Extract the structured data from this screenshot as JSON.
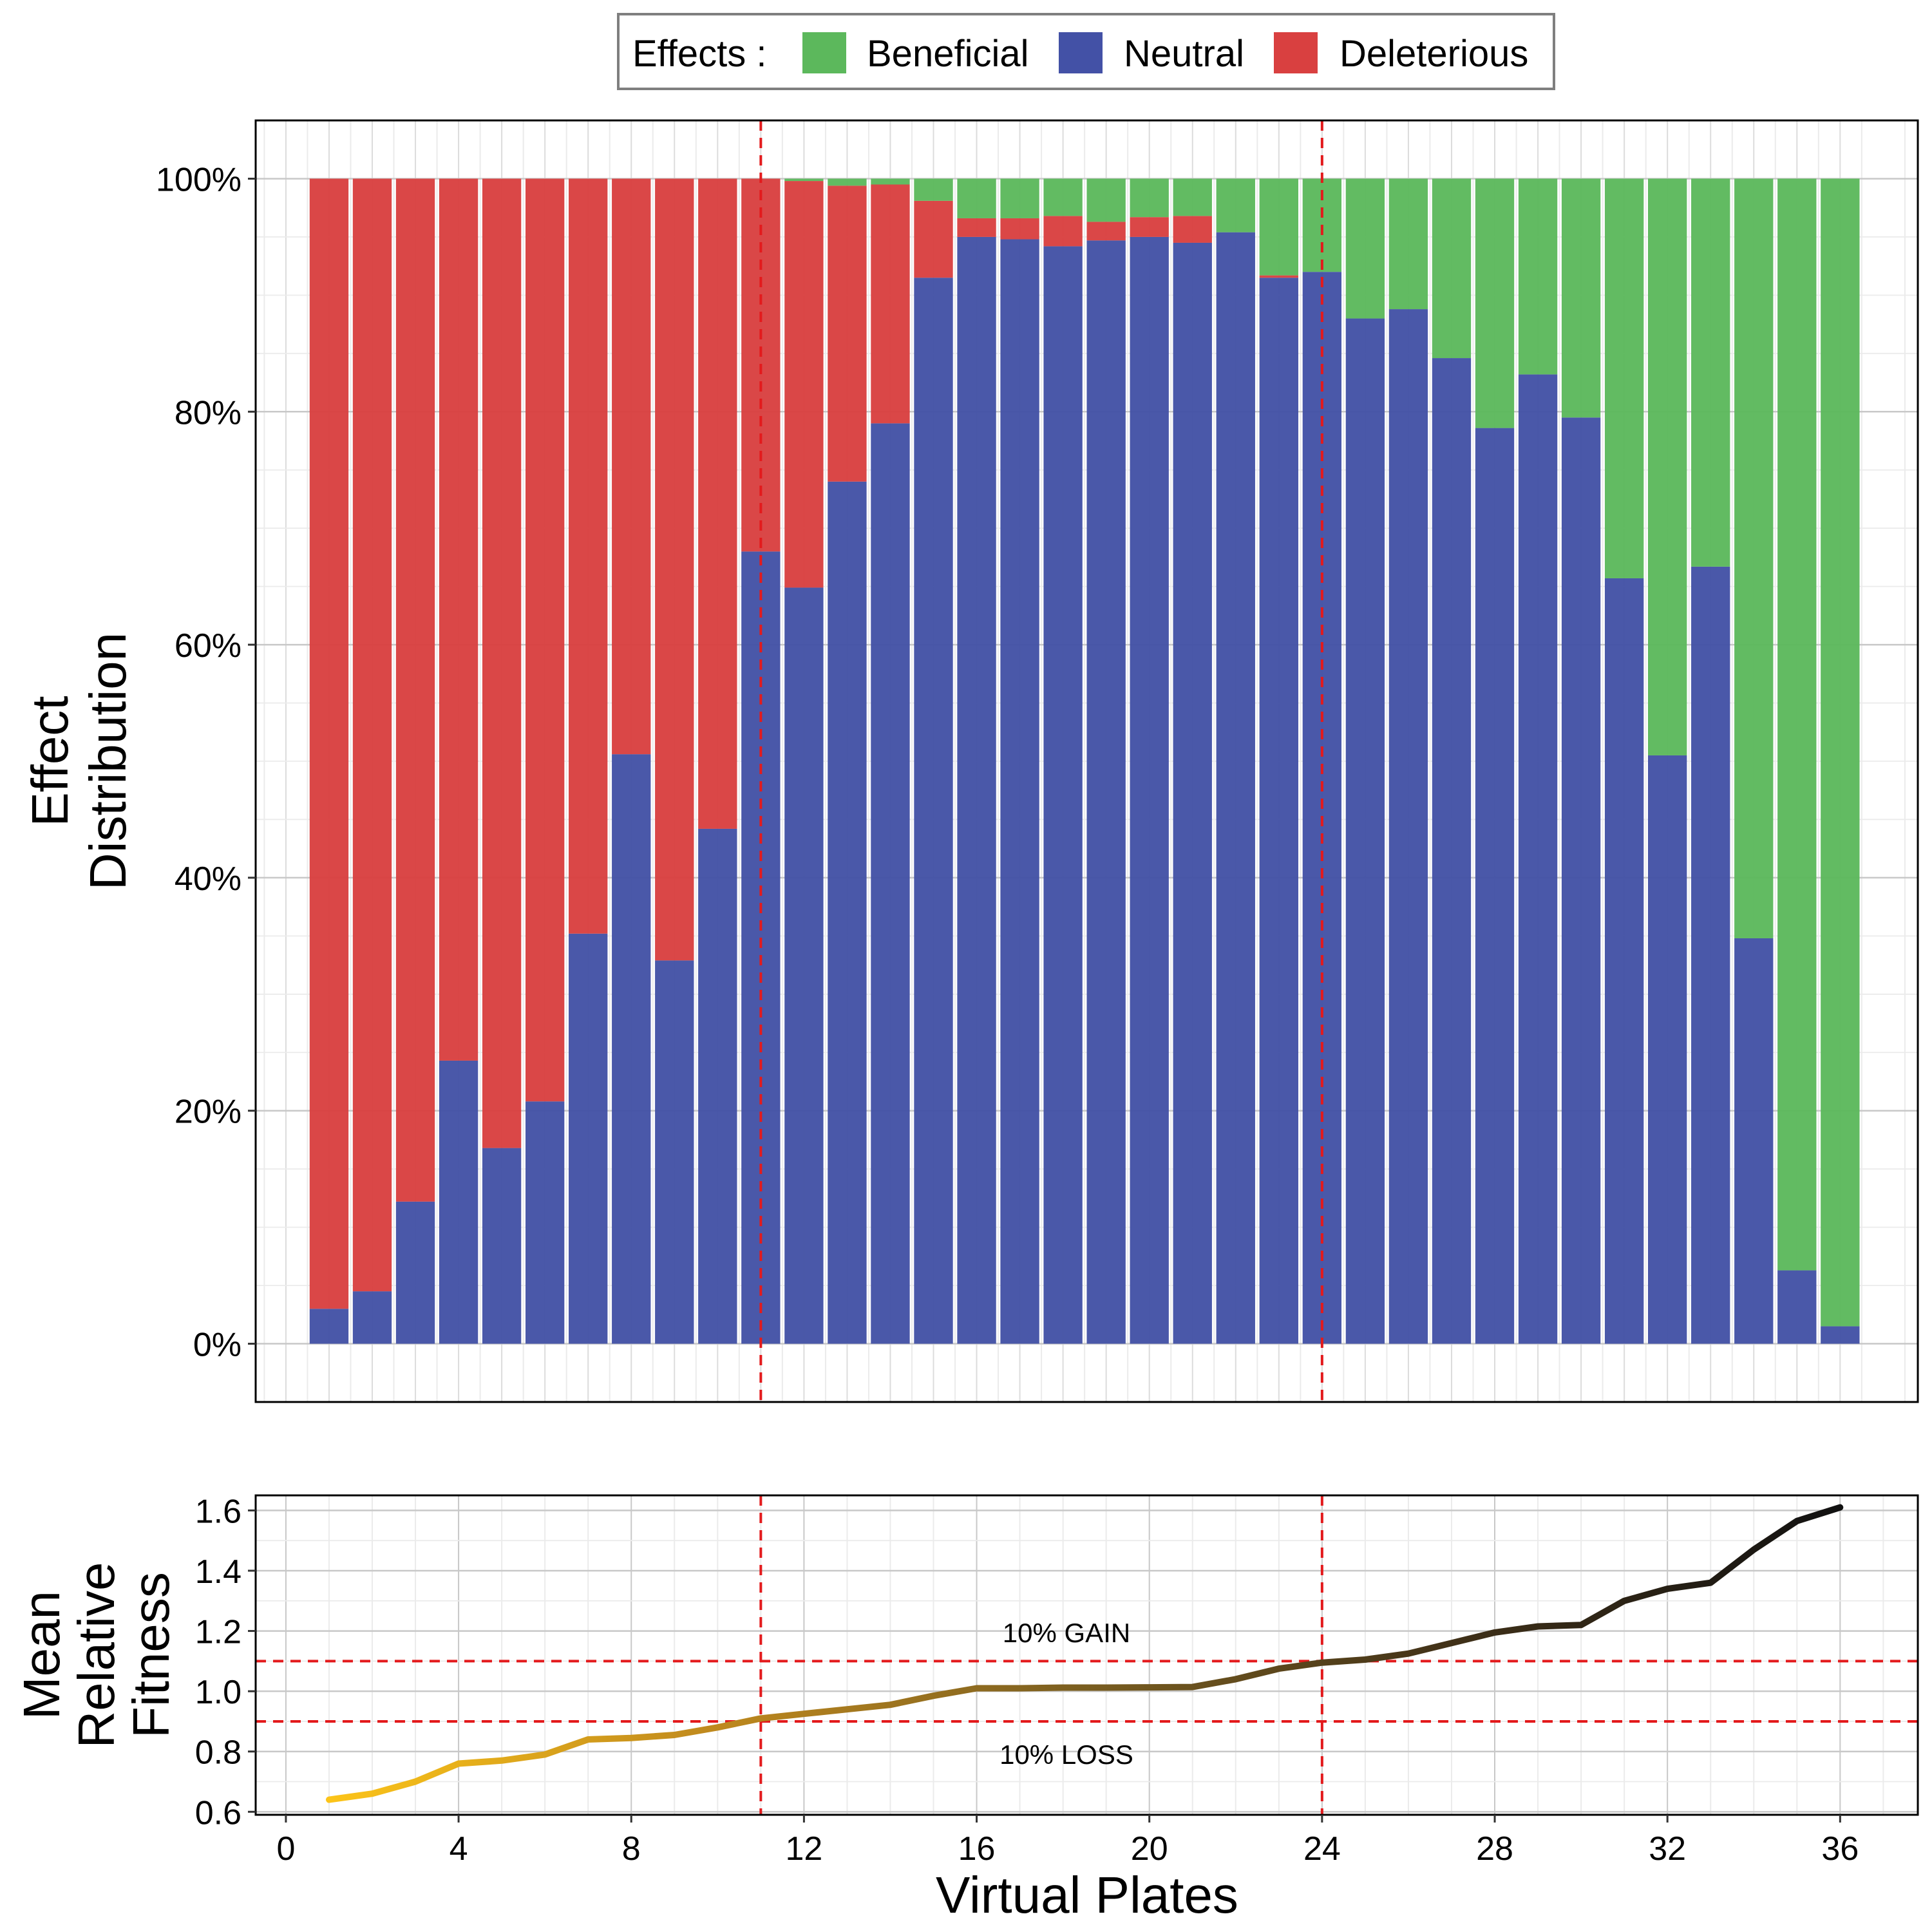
{
  "legend": {
    "title": "Effects :",
    "items": [
      {
        "label": "Beneficial",
        "color": "#5cb85c"
      },
      {
        "label": "Neutral",
        "color": "#4351a6"
      },
      {
        "label": "Deleterious",
        "color": "#d94040"
      }
    ]
  },
  "axes": {
    "top_ylabel_line1": "Effect",
    "top_ylabel_line2": "Distribution",
    "bottom_ylabel_line1": "Mean",
    "bottom_ylabel_line2": "Relative",
    "bottom_ylabel_line3": "Fitness",
    "xlabel": "Virtual Plates"
  },
  "annotations": {
    "gain_label": "10% GAIN",
    "loss_label": "10% LOSS"
  },
  "chart_data": [
    {
      "type": "bar",
      "stacked": true,
      "percent": true,
      "x": [
        1,
        2,
        3,
        4,
        5,
        6,
        7,
        8,
        9,
        10,
        11,
        12,
        13,
        14,
        15,
        16,
        17,
        18,
        19,
        20,
        21,
        22,
        23,
        24,
        25,
        26,
        27,
        28,
        29,
        30,
        31,
        32,
        33,
        34,
        35,
        36
      ],
      "series": [
        {
          "name": "Neutral",
          "color": "#4351a6",
          "values": [
            3,
            4.5,
            12.2,
            24.3,
            16.8,
            20.8,
            35.2,
            50.6,
            32.9,
            44.2,
            68,
            64.9,
            74,
            79,
            91.5,
            95,
            94.8,
            94.2,
            94.7,
            95,
            94.5,
            95.4,
            91.5,
            92,
            88,
            88.8,
            84.6,
            78.6,
            83.2,
            79.5,
            65.7,
            50.5,
            66.7,
            34.8,
            6.3,
            1.5
          ]
        },
        {
          "name": "Deleterious",
          "color": "#d94040",
          "values": [
            97,
            95.5,
            87.8,
            75.7,
            83.2,
            79.2,
            64.8,
            49.4,
            67.1,
            55.8,
            32,
            34.9,
            25.4,
            20.5,
            6.6,
            1.6,
            1.8,
            2.6,
            1.6,
            1.7,
            2.3,
            0,
            0.2,
            0,
            0,
            0,
            0,
            0,
            0,
            0,
            0,
            0,
            0,
            0,
            0,
            0
          ]
        },
        {
          "name": "Beneficial",
          "color": "#5cb85c",
          "values": [
            0,
            0,
            0,
            0,
            0,
            0,
            0,
            0,
            0,
            0,
            0,
            0.2,
            0.6,
            0.5,
            1.9,
            3.4,
            3.4,
            3.2,
            3.7,
            3.3,
            3.2,
            4.6,
            8.3,
            8,
            12,
            11.2,
            15.4,
            21.4,
            16.8,
            20.5,
            34.3,
            49.5,
            33.3,
            65.2,
            93.7,
            98.5
          ]
        }
      ],
      "ylim": [
        -5,
        105
      ],
      "yticks": [
        0,
        20,
        40,
        60,
        80,
        100
      ],
      "ytick_labels": [
        "0%",
        "20%",
        "40%",
        "60%",
        "80%",
        "100%"
      ],
      "vlines": [
        11,
        24
      ],
      "grid": true
    },
    {
      "type": "line",
      "x": [
        1,
        2,
        3,
        4,
        5,
        6,
        7,
        8,
        9,
        10,
        11,
        12,
        13,
        14,
        15,
        16,
        17,
        18,
        19,
        20,
        21,
        22,
        23,
        24,
        25,
        26,
        27,
        28,
        29,
        30,
        31,
        32,
        33,
        34,
        35,
        36
      ],
      "y": [
        0.64,
        0.66,
        0.7,
        0.76,
        0.77,
        0.79,
        0.84,
        0.845,
        0.855,
        0.88,
        0.91,
        0.925,
        0.94,
        0.955,
        0.985,
        1.01,
        1.01,
        1.012,
        1.012,
        1.013,
        1.014,
        1.04,
        1.075,
        1.095,
        1.105,
        1.125,
        1.16,
        1.195,
        1.215,
        1.22,
        1.3,
        1.34,
        1.36,
        1.47,
        1.565,
        1.61
      ],
      "color_gradient": [
        "#fcc419",
        "#c08a1e",
        "#7a5e20",
        "#3f3018",
        "#111111"
      ],
      "xlim": [
        -0.7,
        37.8
      ],
      "ylim": [
        0.59,
        1.65
      ],
      "xticks": [
        0,
        4,
        8,
        12,
        16,
        20,
        24,
        28,
        32,
        36
      ],
      "xtick_labels": [
        "0",
        "4",
        "8",
        "12",
        "16",
        "20",
        "24",
        "28",
        "32",
        "36"
      ],
      "yticks": [
        0.6,
        0.8,
        1.0,
        1.2,
        1.4,
        1.6
      ],
      "ytick_labels": [
        "0.6",
        "0.8",
        "1.0",
        "1.2",
        "1.4",
        "1.6"
      ],
      "hlines": [
        0.9,
        1.1
      ],
      "vlines": [
        11,
        24
      ],
      "grid": true
    }
  ]
}
